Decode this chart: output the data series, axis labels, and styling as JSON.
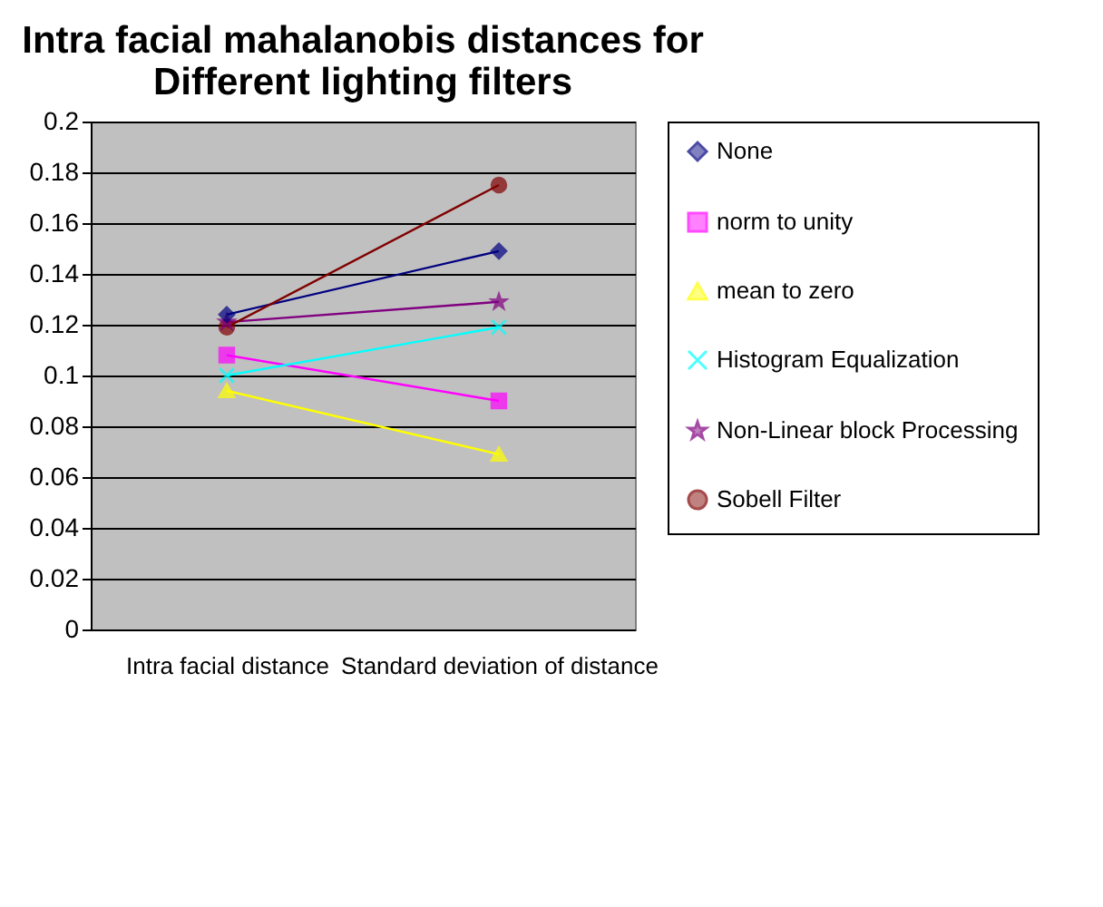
{
  "chart_data": {
    "type": "line",
    "title": "Intra facial mahalanobis distances for Different lighting filters",
    "categories": [
      "Intra facial distance",
      "Standard deviation of distance"
    ],
    "series": [
      {
        "name": "None",
        "color": "#000080",
        "marker": "diamond",
        "values": [
          0.124,
          0.149
        ]
      },
      {
        "name": "norm to unity",
        "color": "#ff00ff",
        "marker": "square",
        "values": [
          0.108,
          0.09
        ]
      },
      {
        "name": "mean to zero",
        "color": "#ffff00",
        "marker": "triangle",
        "values": [
          0.094,
          0.069
        ]
      },
      {
        "name": "Histogram Equalization",
        "color": "#00ffff",
        "marker": "cross",
        "values": [
          0.1,
          0.119
        ]
      },
      {
        "name": "Non-Linear block Processing",
        "color": "#800080",
        "marker": "star",
        "values": [
          0.121,
          0.129
        ]
      },
      {
        "name": "Sobell Filter",
        "color": "#800000",
        "marker": "circle",
        "values": [
          0.119,
          0.175
        ]
      }
    ],
    "ylim": [
      0,
      0.2
    ],
    "yticks": [
      0,
      0.02,
      0.04,
      0.06,
      0.08,
      0.1,
      0.12,
      0.14,
      0.16,
      0.18,
      0.2
    ],
    "grid": "y",
    "legend": "right"
  }
}
